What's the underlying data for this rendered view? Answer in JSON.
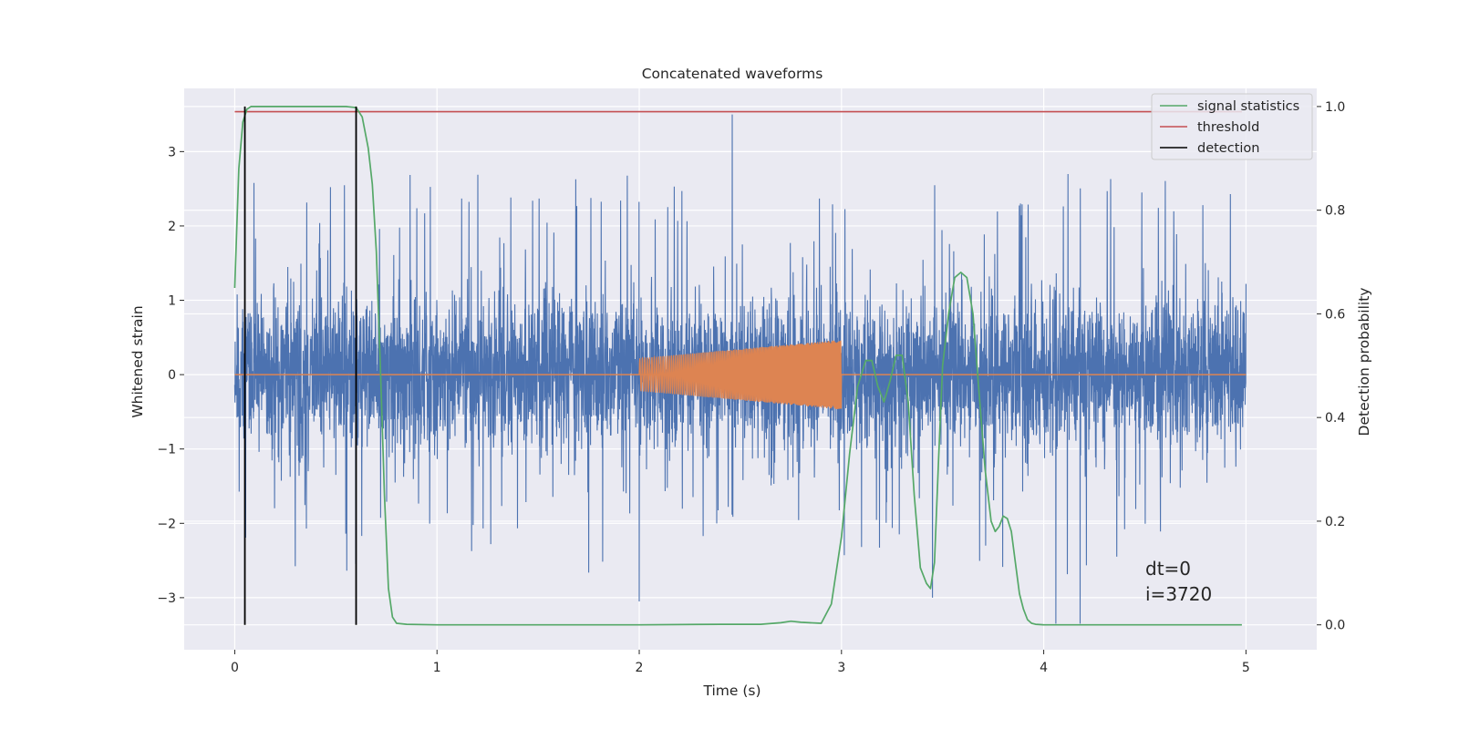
{
  "chart_data": {
    "type": "line",
    "title": "Concatenated waveforms",
    "xlabel": "Time (s)",
    "ylabel": "Whitened strain",
    "ylabel_right": "Detection probability",
    "xlim": [
      -0.25,
      5.35
    ],
    "ylim": [
      -3.7,
      3.85
    ],
    "ylim_right": [
      -0.048,
      1.035
    ],
    "xticks": [
      0,
      1,
      2,
      3,
      4,
      5
    ],
    "yticks": [
      -3,
      -2,
      -1,
      0,
      1,
      2,
      3
    ],
    "yticks_right": [
      0.0,
      0.2,
      0.4,
      0.6,
      0.8,
      1.0
    ],
    "ytick_labels": [
      "−3",
      "−2",
      "−1",
      "0",
      "1",
      "2",
      "3"
    ],
    "yticks_right_labels": [
      "0.0",
      "0.2",
      "0.4",
      "0.6",
      "0.8",
      "1.0"
    ],
    "grid": true,
    "legend_position": "top-right",
    "colors": {
      "strain": "#4c72b0",
      "waveform": "#dd8452",
      "signal": "#55a868",
      "threshold": "#c44e52",
      "detection": "#000000",
      "background": "#eaeaf2"
    },
    "series": [
      {
        "name": "signal statistics",
        "axis": "right",
        "x": [
          0.0,
          0.02,
          0.04,
          0.06,
          0.08,
          0.1,
          0.2,
          0.3,
          0.4,
          0.5,
          0.55,
          0.6,
          0.63,
          0.66,
          0.68,
          0.7,
          0.72,
          0.74,
          0.76,
          0.78,
          0.8,
          0.85,
          1.0,
          1.5,
          2.0,
          2.4,
          2.6,
          2.7,
          2.75,
          2.8,
          2.9,
          2.95,
          3.0,
          3.04,
          3.08,
          3.12,
          3.15,
          3.18,
          3.21,
          3.24,
          3.27,
          3.3,
          3.33,
          3.36,
          3.39,
          3.42,
          3.44,
          3.46,
          3.48,
          3.5,
          3.53,
          3.56,
          3.59,
          3.62,
          3.65,
          3.68,
          3.71,
          3.74,
          3.76,
          3.78,
          3.8,
          3.82,
          3.84,
          3.86,
          3.88,
          3.9,
          3.92,
          3.94,
          3.96,
          4.0,
          4.5,
          4.98
        ],
        "values": [
          0.65,
          0.88,
          0.97,
          0.995,
          1.0,
          1.0,
          1.0,
          1.0,
          1.0,
          1.0,
          1.0,
          0.998,
          0.98,
          0.92,
          0.85,
          0.72,
          0.5,
          0.25,
          0.07,
          0.015,
          0.003,
          0.001,
          0.0,
          0.0,
          0.0,
          0.001,
          0.001,
          0.004,
          0.007,
          0.005,
          0.003,
          0.04,
          0.17,
          0.33,
          0.46,
          0.51,
          0.51,
          0.46,
          0.43,
          0.47,
          0.52,
          0.52,
          0.43,
          0.25,
          0.11,
          0.08,
          0.07,
          0.12,
          0.32,
          0.5,
          0.6,
          0.67,
          0.68,
          0.67,
          0.6,
          0.45,
          0.3,
          0.2,
          0.18,
          0.19,
          0.21,
          0.205,
          0.18,
          0.12,
          0.06,
          0.03,
          0.01,
          0.003,
          0.001,
          0.0,
          0.0,
          0.0
        ]
      },
      {
        "name": "threshold",
        "axis": "right",
        "x": [
          0.0,
          4.98
        ],
        "values": [
          0.99,
          0.99
        ]
      },
      {
        "name": "detection",
        "axis": "right",
        "type": "vlines",
        "x": [
          0.05,
          0.6
        ],
        "ymin": 0.0,
        "ymax": 1.0
      },
      {
        "name": "",
        "axis": "left",
        "type": "noise",
        "x_range": [
          0.0,
          5.0
        ],
        "dense_amplitude": 0.7,
        "spike_extremes": {
          "max": 3.5,
          "min": -3.35
        }
      },
      {
        "name": "",
        "axis": "left",
        "type": "chirp",
        "x_range": [
          2.0,
          3.0
        ],
        "amplitude_start": 0.22,
        "amplitude_end": 0.47,
        "baseline": 0.0,
        "baseline_x_range": [
          0.0,
          5.0
        ]
      }
    ],
    "annotations": [
      "dt=0",
      "i=3720"
    ],
    "annotation_position": [
      4.5,
      -2.8
    ]
  }
}
